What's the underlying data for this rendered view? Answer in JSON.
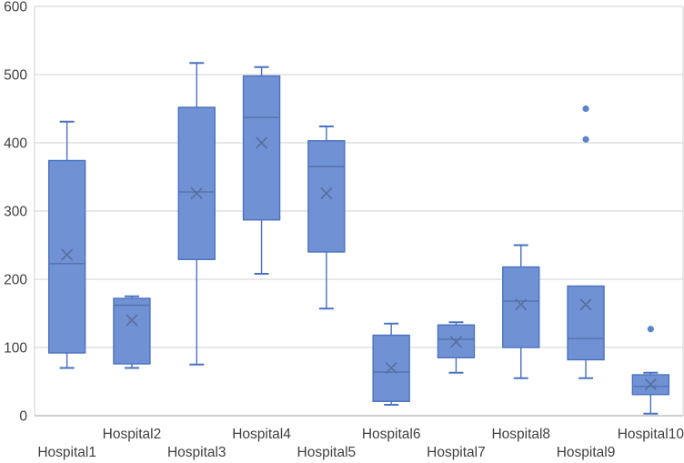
{
  "chart_data": {
    "type": "box",
    "title": "",
    "xlabel": "",
    "ylabel": "",
    "ylim": [
      0,
      600
    ],
    "yticks": [
      0,
      100,
      200,
      300,
      400,
      500,
      600
    ],
    "grid": true,
    "legend": "none",
    "categories": [
      "Hospital1",
      "Hospital2",
      "Hospital3",
      "Hospital4",
      "Hospital5",
      "Hospital6",
      "Hospital7",
      "Hospital8",
      "Hospital9",
      "Hospital10"
    ],
    "series": [
      {
        "name": "Hospital1",
        "low": 70,
        "q1": 92,
        "median": 223,
        "mean": 236,
        "q3": 374,
        "high": 431,
        "outliers": []
      },
      {
        "name": "Hospital2",
        "low": 70,
        "q1": 76,
        "median": 162,
        "mean": 140,
        "q3": 172,
        "high": 175,
        "outliers": []
      },
      {
        "name": "Hospital3",
        "low": 75,
        "q1": 229,
        "median": 328,
        "mean": 326,
        "q3": 452,
        "high": 517,
        "outliers": []
      },
      {
        "name": "Hospital4",
        "low": 208,
        "q1": 287,
        "median": 437,
        "mean": 400,
        "q3": 498,
        "high": 511,
        "outliers": []
      },
      {
        "name": "Hospital5",
        "low": 157,
        "q1": 240,
        "median": 365,
        "mean": 326,
        "q3": 403,
        "high": 424,
        "outliers": []
      },
      {
        "name": "Hospital6",
        "low": 16,
        "q1": 21,
        "median": 64,
        "mean": 70,
        "q3": 118,
        "high": 135,
        "outliers": []
      },
      {
        "name": "Hospital7",
        "low": 63,
        "q1": 85,
        "median": 112,
        "mean": 108,
        "q3": 133,
        "high": 137,
        "outliers": []
      },
      {
        "name": "Hospital8",
        "low": 55,
        "q1": 100,
        "median": 168,
        "mean": 163,
        "q3": 218,
        "high": 250,
        "outliers": []
      },
      {
        "name": "Hospital9",
        "low": 55,
        "q1": 82,
        "median": 113,
        "mean": 163,
        "q3": 190,
        "high": 190,
        "outliers": [
          405,
          450
        ]
      },
      {
        "name": "Hospital10",
        "low": 3,
        "q1": 31,
        "median": 43,
        "mean": 46,
        "q3": 60,
        "high": 63,
        "outliers": [
          127
        ]
      }
    ]
  },
  "colors": {
    "box_fill": "#7191d5",
    "box_border": "#4a72bf",
    "median_line": "#5574ae",
    "mean_marker": "#57709e",
    "whisker": "#4a72bf",
    "outlier": "#5b84cd",
    "gridline": "#d9d9d9",
    "axis_line": "#bfbfbf",
    "plot_border": "#d9d9d9",
    "tick_text": "#3f3f3f"
  }
}
